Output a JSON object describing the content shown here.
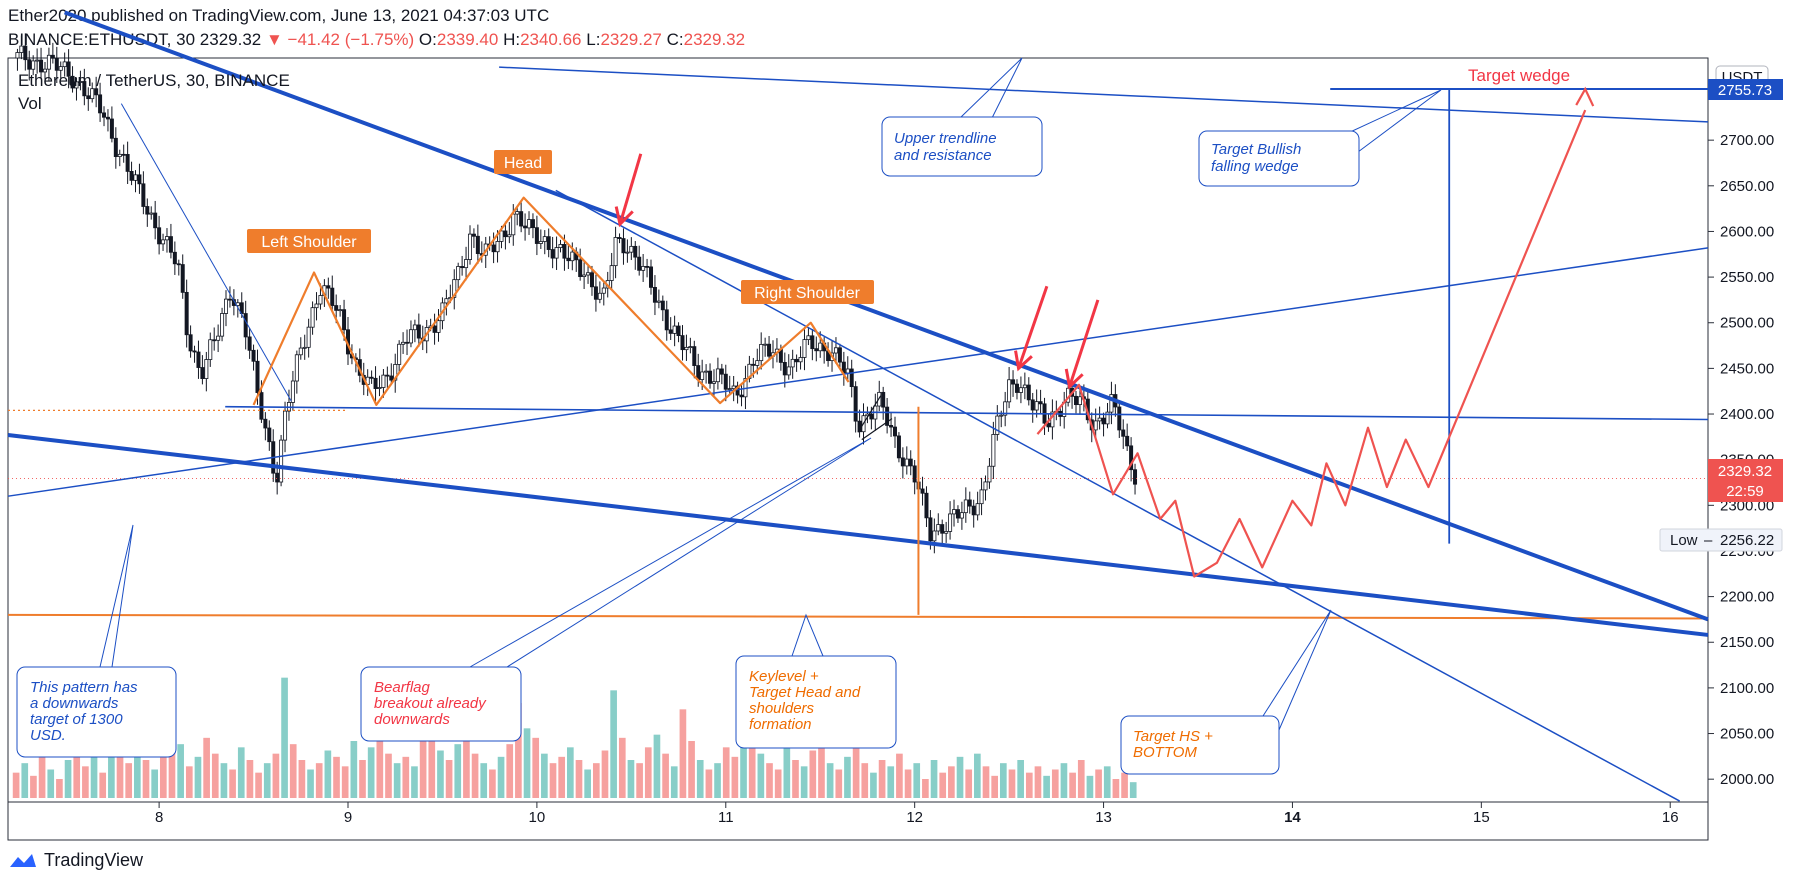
{
  "header": {
    "published": "Ether2020 published on TradingView.com, June 13, 2021 04:37:03 UTC",
    "symbol": "BINANCE:ETHUSDT, 30",
    "price": "2329.32",
    "arrow": "▼",
    "change": "−41.42 (−1.75%)",
    "o_label": "O:",
    "o_value": "2339.40",
    "h_label": "H:",
    "h_value": "2340.66",
    "l_label": "L:",
    "l_value": "2329.27",
    "c_label": "C:",
    "c_value": "2329.32"
  },
  "legend": {
    "title": "Ethereum / TetherUS, 30, BINANCE",
    "vol": "Vol"
  },
  "footer": {
    "brand": "TradingView"
  },
  "colors": {
    "blue": "#1c4fc4",
    "orange": "#ef7d2c",
    "red": "#f23645",
    "up": "#26a69a",
    "down": "#ef5350",
    "candle": "#131722"
  },
  "chart_data": {
    "type": "candlestick",
    "title": "Ethereum / TetherUS, 30, BINANCE",
    "currency": "USDT",
    "y_ticks": [
      2000,
      2050,
      2100,
      2150,
      2200,
      2250,
      2300,
      2350,
      2400,
      2450,
      2500,
      2550,
      2600,
      2650,
      2700
    ],
    "y_tick_labels": [
      "2000.00",
      "2050.00",
      "2100.00",
      "2150.00",
      "2200.00",
      "2250.00",
      "2300.00",
      "2350.00",
      "2400.00",
      "2450.00",
      "2500.00",
      "2550.00",
      "2600.00",
      "2650.00",
      "2700.00"
    ],
    "ylim": [
      1975,
      2790
    ],
    "x_ticks": [
      8,
      9,
      10,
      11,
      12,
      13,
      14,
      15,
      16
    ],
    "x_tick_labels": [
      "8",
      "9",
      "10",
      "11",
      "12",
      "13",
      "14",
      "15",
      "16"
    ],
    "xlim": [
      7.2,
      16.2
    ],
    "last_price": 2329.32,
    "last_price_label": "2329.32",
    "countdown": "22:59",
    "low_label": "Low",
    "low_value": 2256.22,
    "low_value_label": "2256.22",
    "target_price_label": "2755.73",
    "price_path": [
      [
        7.25,
        2790
      ],
      [
        7.4,
        2785
      ],
      [
        7.55,
        2770
      ],
      [
        7.7,
        2730
      ],
      [
        7.85,
        2660
      ],
      [
        8.0,
        2600
      ],
      [
        8.1,
        2560
      ],
      [
        8.15,
        2490
      ],
      [
        8.22,
        2445
      ],
      [
        8.3,
        2480
      ],
      [
        8.38,
        2540
      ],
      [
        8.45,
        2500
      ],
      [
        8.52,
        2420
      ],
      [
        8.58,
        2370
      ],
      [
        8.62,
        2330
      ],
      [
        8.67,
        2400
      ],
      [
        8.75,
        2470
      ],
      [
        8.85,
        2540
      ],
      [
        8.95,
        2510
      ],
      [
        9.05,
        2450
      ],
      [
        9.12,
        2425
      ],
      [
        9.2,
        2440
      ],
      [
        9.3,
        2480
      ],
      [
        9.4,
        2490
      ],
      [
        9.5,
        2510
      ],
      [
        9.58,
        2550
      ],
      [
        9.65,
        2600
      ],
      [
        9.72,
        2570
      ],
      [
        9.8,
        2590
      ],
      [
        9.88,
        2620
      ],
      [
        9.95,
        2600
      ],
      [
        10.05,
        2590
      ],
      [
        10.15,
        2570
      ],
      [
        10.25,
        2560
      ],
      [
        10.35,
        2520
      ],
      [
        10.42,
        2590
      ],
      [
        10.47,
        2590
      ],
      [
        10.55,
        2560
      ],
      [
        10.65,
        2520
      ],
      [
        10.75,
        2480
      ],
      [
        10.85,
        2450
      ],
      [
        10.95,
        2440
      ],
      [
        11.05,
        2420
      ],
      [
        11.15,
        2460
      ],
      [
        11.25,
        2470
      ],
      [
        11.35,
        2450
      ],
      [
        11.45,
        2480
      ],
      [
        11.55,
        2470
      ],
      [
        11.65,
        2440
      ],
      [
        11.7,
        2390
      ],
      [
        11.75,
        2400
      ],
      [
        11.82,
        2410
      ],
      [
        11.9,
        2370
      ],
      [
        12.0,
        2330
      ],
      [
        12.08,
        2270
      ],
      [
        12.15,
        2280
      ],
      [
        12.25,
        2290
      ],
      [
        12.35,
        2310
      ],
      [
        12.43,
        2380
      ],
      [
        12.5,
        2430
      ],
      [
        12.55,
        2440
      ],
      [
        12.62,
        2410
      ],
      [
        12.7,
        2390
      ],
      [
        12.8,
        2420
      ],
      [
        12.88,
        2410
      ],
      [
        12.95,
        2390
      ],
      [
        13.05,
        2410
      ],
      [
        13.12,
        2360
      ],
      [
        13.18,
        2330
      ]
    ],
    "volume_max": 300,
    "volume_bars": [
      40,
      55,
      35,
      70,
      45,
      30,
      60,
      80,
      50,
      65,
      40,
      120,
      75,
      55,
      90,
      60,
      45,
      70,
      110,
      85,
      50,
      65,
      95,
      70,
      55,
      45,
      80,
      60,
      40,
      55,
      70,
      190,
      85,
      60,
      45,
      55,
      75,
      65,
      50,
      90,
      60,
      80,
      110,
      70,
      55,
      65,
      50,
      140,
      95,
      75,
      60,
      85,
      115,
      70,
      55,
      45,
      65,
      85,
      150,
      110,
      95,
      70,
      55,
      65,
      80,
      60,
      45,
      55,
      75,
      170,
      95,
      60,
      55,
      80,
      100,
      70,
      50,
      140,
      90,
      60,
      45,
      55,
      80,
      65,
      95,
      120,
      70,
      55,
      45,
      100,
      60,
      50,
      75,
      85,
      55,
      45,
      65,
      90,
      55,
      40,
      60,
      50,
      70,
      45,
      55,
      30,
      60,
      40,
      50,
      65,
      45,
      70,
      50,
      35,
      55,
      45,
      60,
      40,
      50,
      35,
      45,
      55,
      40,
      60,
      35,
      45,
      50,
      30,
      40,
      25
    ]
  },
  "annotations": {
    "head": "Head",
    "left_shoulder": "Left Shoulder",
    "right_shoulder": "Right Shoulder",
    "target_wedge": "Target wedge",
    "upper_trendline": [
      "Upper trendline",
      "and resistance"
    ],
    "target_bullish": [
      "Target Bullish",
      "falling wedge"
    ],
    "pattern_target": [
      "This pattern has",
      "a downwards",
      "target of 1300",
      "USD."
    ],
    "bearflag": [
      "Bearflag",
      "breakout already",
      "downwards"
    ],
    "keylevel": [
      "Keylevel +",
      "Target Head and",
      "shoulders",
      "formation"
    ],
    "target_hs": [
      "Target HS +",
      "BOTTOM"
    ]
  }
}
